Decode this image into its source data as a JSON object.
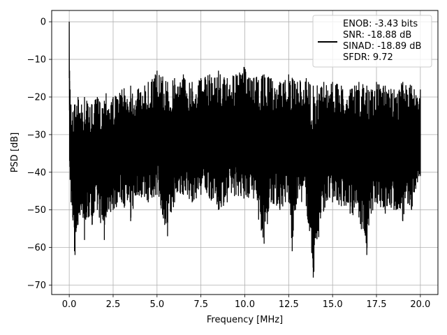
{
  "chart_data": {
    "type": "line",
    "title": "",
    "xlabel": "Frequency [MHz]",
    "ylabel": "PSD [dB]",
    "xlim": [
      -1.0,
      21.0
    ],
    "ylim": [
      -72.5,
      3.0
    ],
    "xticks": [
      0.0,
      2.5,
      5.0,
      7.5,
      10.0,
      12.5,
      15.0,
      17.5,
      20.0
    ],
    "xtick_labels": [
      "0.0",
      "2.5",
      "5.0",
      "7.5",
      "10.0",
      "12.5",
      "15.0",
      "17.5",
      "20.0"
    ],
    "yticks": [
      0,
      -10,
      -20,
      -30,
      -40,
      -50,
      -60,
      -70
    ],
    "ytick_labels": [
      "0",
      "−10",
      "−20",
      "−30",
      "−40",
      "−50",
      "−60",
      "−70"
    ],
    "grid": true,
    "legend_position": "top-right",
    "legend_lines": [
      "ENOB: -3.43 bits",
      "SNR: -18.88 dB",
      "SINAD: -18.89 dB",
      "SFDR: 9.72"
    ],
    "series": [
      {
        "color": "#000000",
        "x": [
          0.0,
          0.02,
          0.05,
          0.1,
          0.2,
          0.3,
          0.33,
          0.5,
          0.7,
          0.87,
          1.0,
          1.3,
          1.6,
          2.0,
          2.1,
          2.5,
          3.0,
          3.5,
          3.9,
          4.5,
          5.0,
          5.6,
          6.0,
          6.5,
          7.0,
          7.5,
          8.0,
          8.5,
          9.0,
          9.5,
          9.95,
          10.5,
          11.1,
          11.5,
          12.0,
          12.5,
          12.7,
          13.0,
          13.5,
          13.9,
          14.5,
          15.0,
          15.5,
          16.0,
          16.5,
          16.95,
          17.2,
          17.5,
          18.0,
          18.5,
          19.0,
          19.5,
          20.0
        ],
        "upper": [
          0,
          -13,
          -18,
          -22,
          -24,
          -22,
          -22,
          -20,
          -22,
          -20,
          -21,
          -22,
          -20,
          -21,
          -19,
          -20,
          -18,
          -17,
          -18,
          -16,
          -13,
          -16,
          -15,
          -14,
          -16,
          -15,
          -14,
          -13,
          -15,
          -14,
          -12,
          -15,
          -14,
          -15,
          -16,
          -14,
          -15,
          -16,
          -15,
          -17,
          -16,
          -16,
          -17,
          -18,
          -16,
          -17,
          -18,
          -16,
          -17,
          -18,
          -16,
          -17,
          -18
        ],
        "lower": [
          -15,
          -37,
          -42,
          -48,
          -52,
          -61,
          -62,
          -54,
          -50,
          -58,
          -52,
          -54,
          -50,
          -58,
          -52,
          -50,
          -48,
          -53,
          -46,
          -48,
          -46,
          -57,
          -48,
          -46,
          -48,
          -46,
          -47,
          -50,
          -48,
          -46,
          -47,
          -47,
          -59,
          -48,
          -50,
          -48,
          -61,
          -47,
          -49,
          -68,
          -50,
          -48,
          -49,
          -51,
          -52,
          -62,
          -51,
          -48,
          -51,
          -50,
          -53,
          -50,
          -41
        ]
      }
    ]
  }
}
